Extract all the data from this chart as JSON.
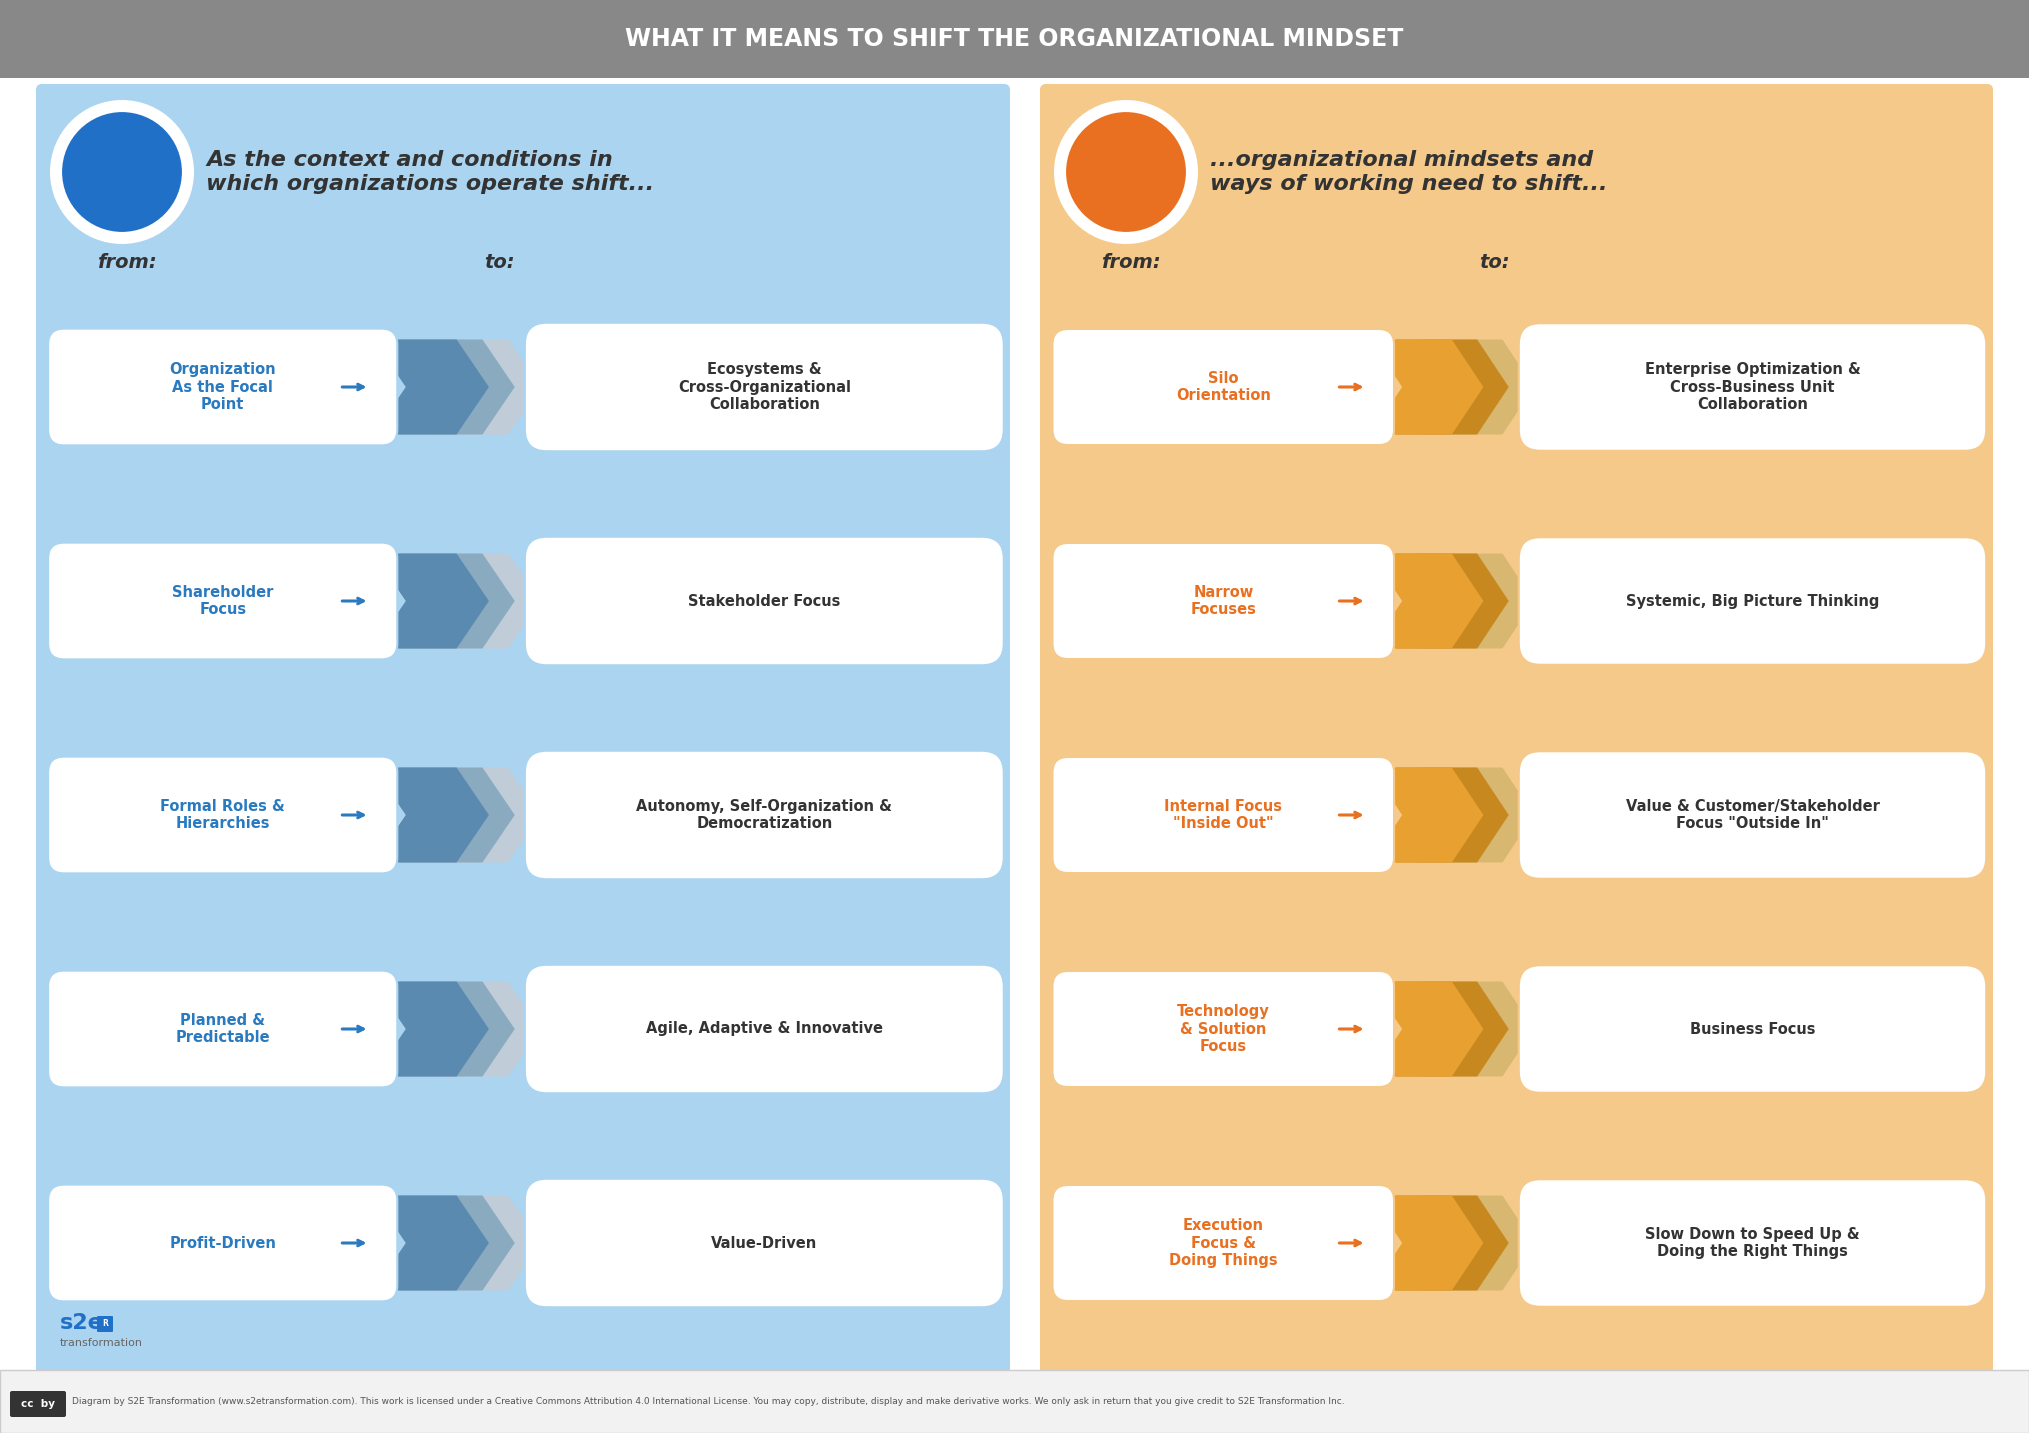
{
  "title": "WHAT IT MEANS TO SHIFT THE ORGANIZATIONAL MINDSET",
  "title_color": "#ffffff",
  "title_bg": "#888888",
  "bg_color": "#ffffff",
  "left_panel": {
    "bg_color": "#aad4f0",
    "header_text": "As the context and conditions in\nwhich organizations operate shift...",
    "header_color": "#333333",
    "icon_bg": "#2070c8",
    "from_label": "from:",
    "to_label": "to:",
    "label_color": "#333333",
    "from_items": [
      "Organization\nAs the Focal\nPoint",
      "Shareholder\nFocus",
      "Formal Roles &\nHierarchies",
      "Planned &\nPredictable",
      "Profit-Driven"
    ],
    "to_items": [
      "Ecosystems &\nCross-Organizational\nCollaboration",
      "Stakeholder Focus",
      "Autonomy, Self-Organization &\nDemocratization",
      "Agile, Adaptive & Innovative",
      "Value-Driven"
    ],
    "from_color": "#2a7abf",
    "to_color": "#333333",
    "arrow_color": "#5a8ab0",
    "arrow_shadow": "#8aaac0",
    "arrow_lightest": "#c0cdd8"
  },
  "right_panel": {
    "bg_color": "#f5c98a",
    "header_text": "...organizational mindsets and\nways of working need to shift...",
    "header_color": "#333333",
    "icon_bg": "#e87020",
    "from_label": "from:",
    "to_label": "to:",
    "label_color": "#333333",
    "from_items": [
      "Silo\nOrientation",
      "Narrow\nFocuses",
      "Internal Focus\n\"Inside Out\"",
      "Technology\n& Solution\nFocus",
      "Execution\nFocus &\nDoing Things"
    ],
    "to_items": [
      "Enterprise Optimization &\nCross-Business Unit\nCollaboration",
      "Systemic, Big Picture Thinking",
      "Value & Customer/Stakeholder\nFocus \"Outside In\"",
      "Business Focus",
      "Slow Down to Speed Up &\nDoing the Right Things"
    ],
    "from_color": "#e87020",
    "to_color": "#333333",
    "arrow_color": "#e8a030",
    "arrow_shadow": "#c88820",
    "arrow_lightest": "#d8b870"
  },
  "footer_text": "Diagram by S2E Transformation (www.s2etransformation.com). This work is licensed under a Creative Commons Attribution 4.0 International License. You may copy, distribute, display and make derivative works. We only ask in return that you give credit to S2E Transformation Inc.",
  "s2e_color": "#2070c8",
  "s2e_text_color": "#666666"
}
